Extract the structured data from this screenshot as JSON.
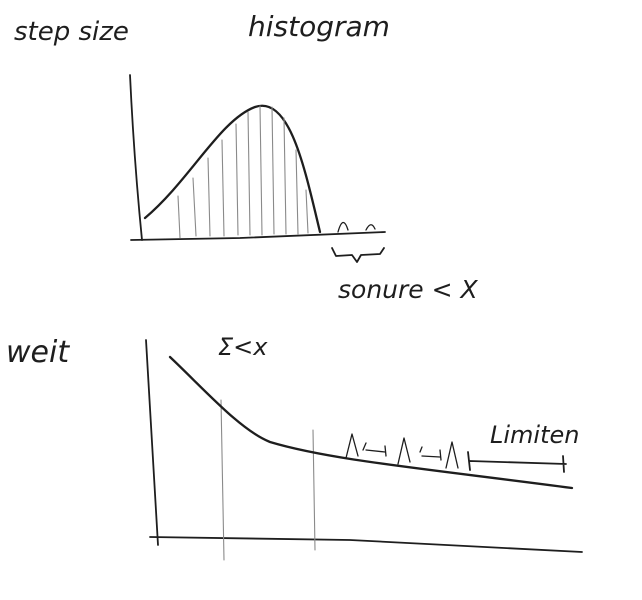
{
  "labels": {
    "top_left": "step size",
    "top_title": "histogram",
    "top_annotation": "sonure < X",
    "bottom_left": "weit",
    "bottom_sum": "Σ<x",
    "bottom_annotation": "Limiten"
  },
  "colors": {
    "ink": "#1e1e1e",
    "pencil": "#8a8a8a",
    "paper": "#ffffff"
  }
}
